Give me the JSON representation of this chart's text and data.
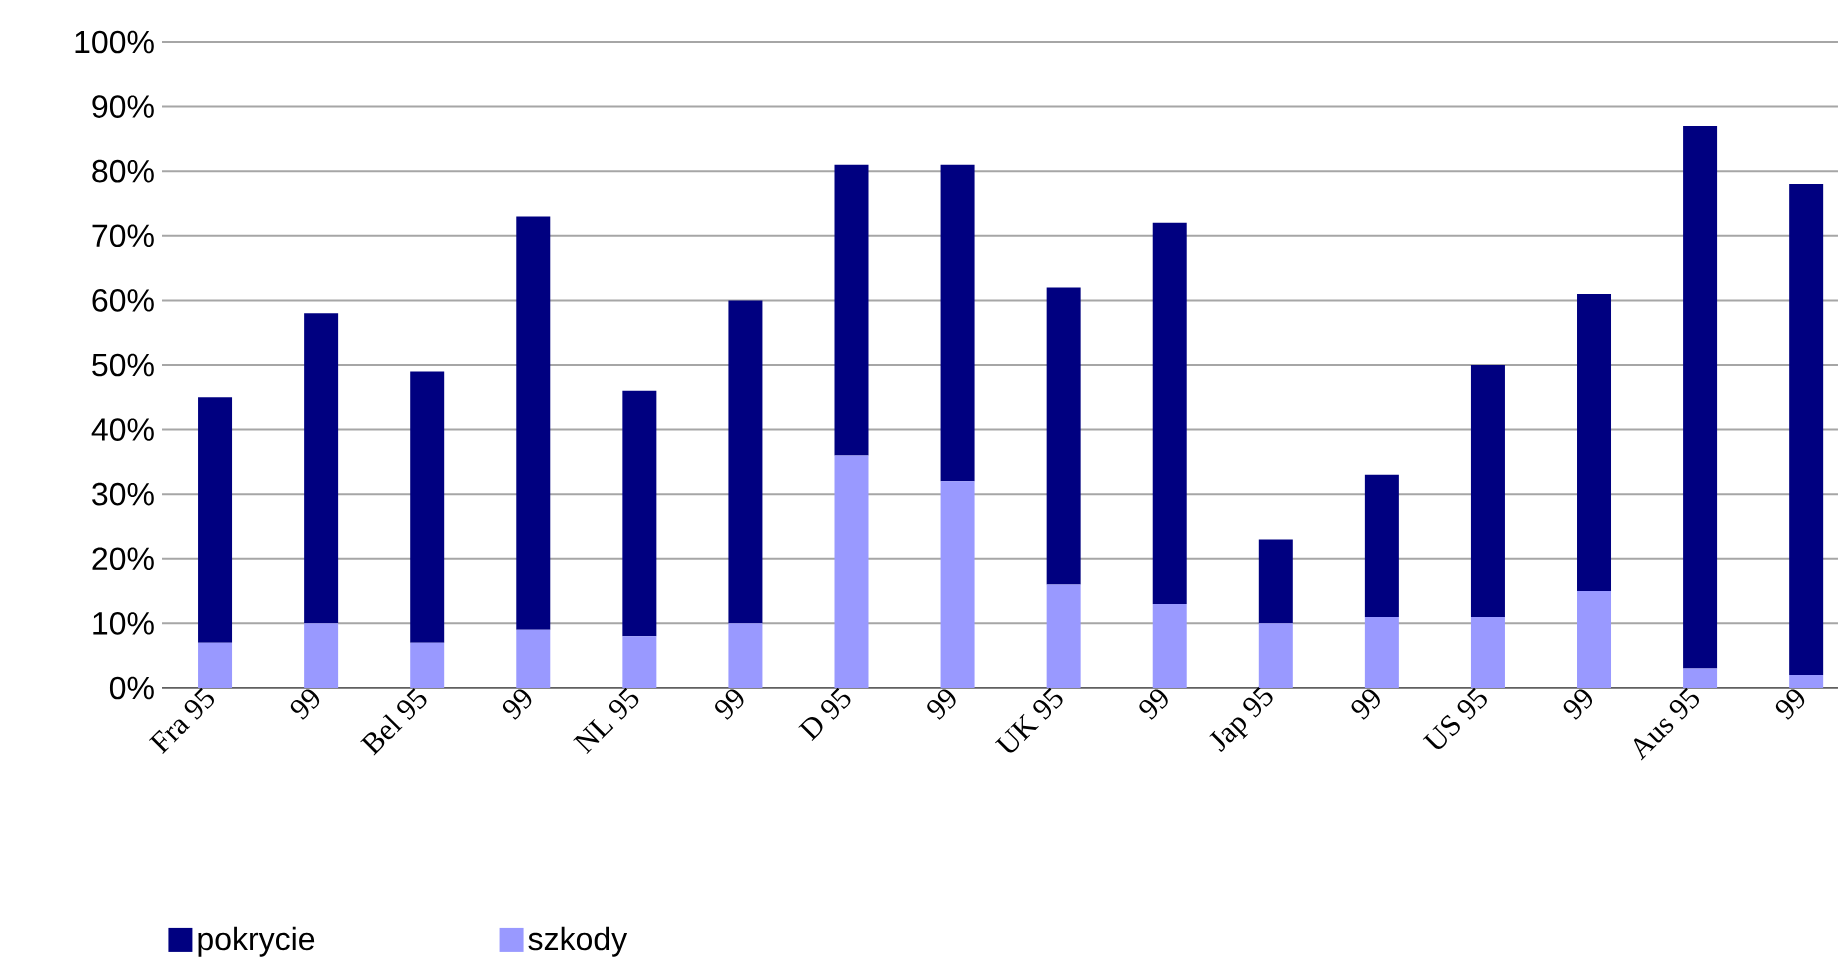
{
  "chart_data": {
    "type": "bar",
    "stacked": true,
    "categories": [
      "Fra 95",
      "99",
      "Bel 95",
      "99",
      "NL 95",
      "99",
      "D 95",
      "99",
      "UK 95",
      "99",
      "Jap 95",
      "99",
      "US 95",
      "99",
      "Aus 95",
      "99"
    ],
    "series": [
      {
        "name": "szkody",
        "color": "#9999ff",
        "values": [
          7,
          10,
          7,
          9,
          8,
          10,
          36,
          32,
          16,
          13,
          10,
          11,
          11,
          15,
          3,
          2
        ]
      },
      {
        "name": "pokrycie",
        "color": "#000080",
        "values": [
          38,
          48,
          42,
          64,
          38,
          50,
          45,
          49,
          46,
          59,
          13,
          22,
          39,
          46,
          84,
          76
        ]
      }
    ],
    "ylim": [
      0,
      100
    ],
    "yticks": [
      {
        "value": 0,
        "label": "0%"
      },
      {
        "value": 10,
        "label": "10%"
      },
      {
        "value": 20,
        "label": "20%"
      },
      {
        "value": 30,
        "label": "30%"
      },
      {
        "value": 40,
        "label": "40%"
      },
      {
        "value": 50,
        "label": "50%"
      },
      {
        "value": 60,
        "label": "60%"
      },
      {
        "value": 70,
        "label": "70%"
      },
      {
        "value": 80,
        "label": "80%"
      },
      {
        "value": 90,
        "label": "90%"
      },
      {
        "value": 100,
        "label": "100%"
      }
    ],
    "grid": "y",
    "legend": "bottom left"
  }
}
